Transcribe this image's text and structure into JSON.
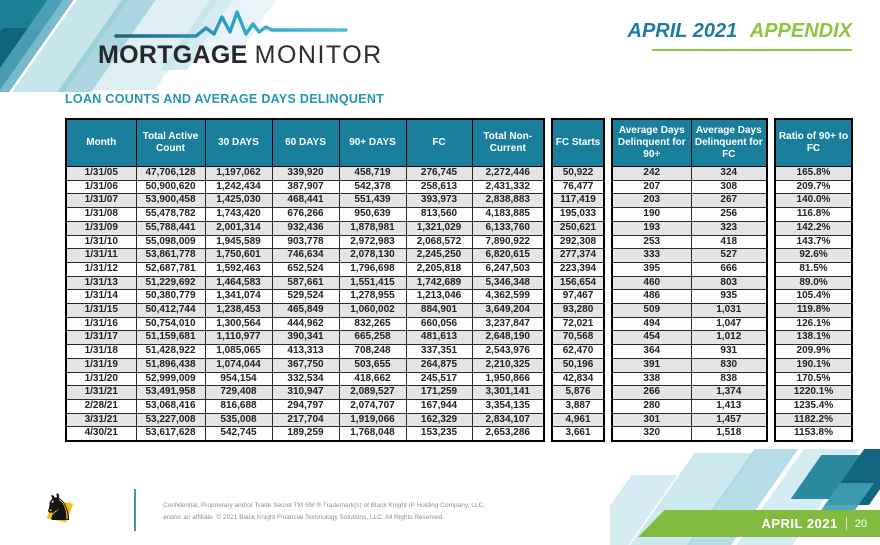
{
  "header": {
    "logo": {
      "bold": "MORTGAGE",
      "light": "MONITOR"
    },
    "appendix": {
      "month": "APRIL 2021",
      "label": "APPENDIX"
    }
  },
  "section_title": "LOAN COUNTS AND AVERAGE DAYS DELINQUENT",
  "chart_data": {
    "type": "table",
    "title": "LOAN COUNTS AND AVERAGE DAYS DELINQUENT",
    "column_groups": [
      [
        "Month",
        "Total Active Count",
        "30 DAYS",
        "60 DAYS",
        "90+ DAYS",
        "FC",
        "Total Non-Current"
      ],
      [
        "FC Starts"
      ],
      [
        "Average Days Delinquent for 90+",
        "Average Days Delinquent for FC"
      ],
      [
        "Ratio of 90+ to FC"
      ]
    ],
    "rows": [
      [
        "1/31/05",
        "47,706,128",
        "1,197,062",
        "339,920",
        "458,719",
        "276,745",
        "2,272,446",
        "50,922",
        "242",
        "324",
        "165.8%"
      ],
      [
        "1/31/06",
        "50,900,620",
        "1,242,434",
        "387,907",
        "542,378",
        "258,613",
        "2,431,332",
        "76,477",
        "207",
        "308",
        "209.7%"
      ],
      [
        "1/31/07",
        "53,900,458",
        "1,425,030",
        "468,441",
        "551,439",
        "393,973",
        "2,838,883",
        "117,419",
        "203",
        "267",
        "140.0%"
      ],
      [
        "1/31/08",
        "55,478,782",
        "1,743,420",
        "676,266",
        "950,639",
        "813,560",
        "4,183,885",
        "195,033",
        "190",
        "256",
        "116.8%"
      ],
      [
        "1/31/09",
        "55,788,441",
        "2,001,314",
        "932,436",
        "1,878,981",
        "1,321,029",
        "6,133,760",
        "250,621",
        "193",
        "323",
        "142.2%"
      ],
      [
        "1/31/10",
        "55,098,009",
        "1,945,589",
        "903,778",
        "2,972,983",
        "2,068,572",
        "7,890,922",
        "292,308",
        "253",
        "418",
        "143.7%"
      ],
      [
        "1/31/11",
        "53,861,778",
        "1,750,601",
        "746,634",
        "2,078,130",
        "2,245,250",
        "6,820,615",
        "277,374",
        "333",
        "527",
        "92.6%"
      ],
      [
        "1/31/12",
        "52,687,781",
        "1,592,463",
        "652,524",
        "1,796,698",
        "2,205,818",
        "6,247,503",
        "223,394",
        "395",
        "666",
        "81.5%"
      ],
      [
        "1/31/13",
        "51,229,692",
        "1,464,583",
        "587,661",
        "1,551,415",
        "1,742,689",
        "5,346,348",
        "156,654",
        "460",
        "803",
        "89.0%"
      ],
      [
        "1/31/14",
        "50,380,779",
        "1,341,074",
        "529,524",
        "1,278,955",
        "1,213,046",
        "4,362,599",
        "97,467",
        "486",
        "935",
        "105.4%"
      ],
      [
        "1/31/15",
        "50,412,744",
        "1,238,453",
        "465,849",
        "1,060,002",
        "884,901",
        "3,649,204",
        "93,280",
        "509",
        "1,031",
        "119.8%"
      ],
      [
        "1/31/16",
        "50,754,010",
        "1,300,564",
        "444,962",
        "832,265",
        "660,056",
        "3,237,847",
        "72,021",
        "494",
        "1,047",
        "126.1%"
      ],
      [
        "1/31/17",
        "51,159,681",
        "1,110,977",
        "390,341",
        "665,258",
        "481,613",
        "2,648,190",
        "70,568",
        "454",
        "1,012",
        "138.1%"
      ],
      [
        "1/31/18",
        "51,428,922",
        "1,085,065",
        "413,313",
        "708,248",
        "337,351",
        "2,543,976",
        "62,470",
        "364",
        "931",
        "209.9%"
      ],
      [
        "1/31/19",
        "51,896,438",
        "1,074,044",
        "367,750",
        "503,655",
        "264,875",
        "2,210,325",
        "50,196",
        "391",
        "830",
        "190.1%"
      ],
      [
        "1/31/20",
        "52,999,009",
        "954,154",
        "332,534",
        "418,662",
        "245,517",
        "1,950,866",
        "42,834",
        "338",
        "838",
        "170.5%"
      ],
      [
        "1/31/21",
        "53,491,958",
        "729,408",
        "310,947",
        "2,089,527",
        "171,259",
        "3,301,141",
        "5,876",
        "266",
        "1,374",
        "1220.1%"
      ],
      [
        "2/28/21",
        "53,068,416",
        "816,688",
        "294,797",
        "2,074,707",
        "167,944",
        "3,354,135",
        "3,887",
        "280",
        "1,413",
        "1235.4%"
      ],
      [
        "3/31/21",
        "53,227,008",
        "535,008",
        "217,704",
        "1,919,066",
        "162,329",
        "2,834,107",
        "4,961",
        "301",
        "1,457",
        "1182.2%"
      ],
      [
        "4/30/21",
        "53,617,628",
        "542,745",
        "189,259",
        "1,768,048",
        "153,235",
        "2,653,286",
        "3,661",
        "320",
        "1,518",
        "1153.8%"
      ]
    ]
  },
  "footer": {
    "disclaimer_line1": "Confidential, Proprietary and/or Trade Secret TM SM ® Trademark(s) of Black Knight IP Holding Company, LLC,",
    "disclaimer_line2": "and/or an affiliate. © 2021 Black Knight Financial Technology Solutions, LLC. All Rights Reserved.",
    "banner": {
      "month": "APRIL 2021",
      "page": "20"
    }
  },
  "colors": {
    "table_header": "#1A7F9C",
    "accent_teal": "#2496B5",
    "accent_green": "#8CC63F",
    "row_stripe": "#E4E4E4"
  }
}
